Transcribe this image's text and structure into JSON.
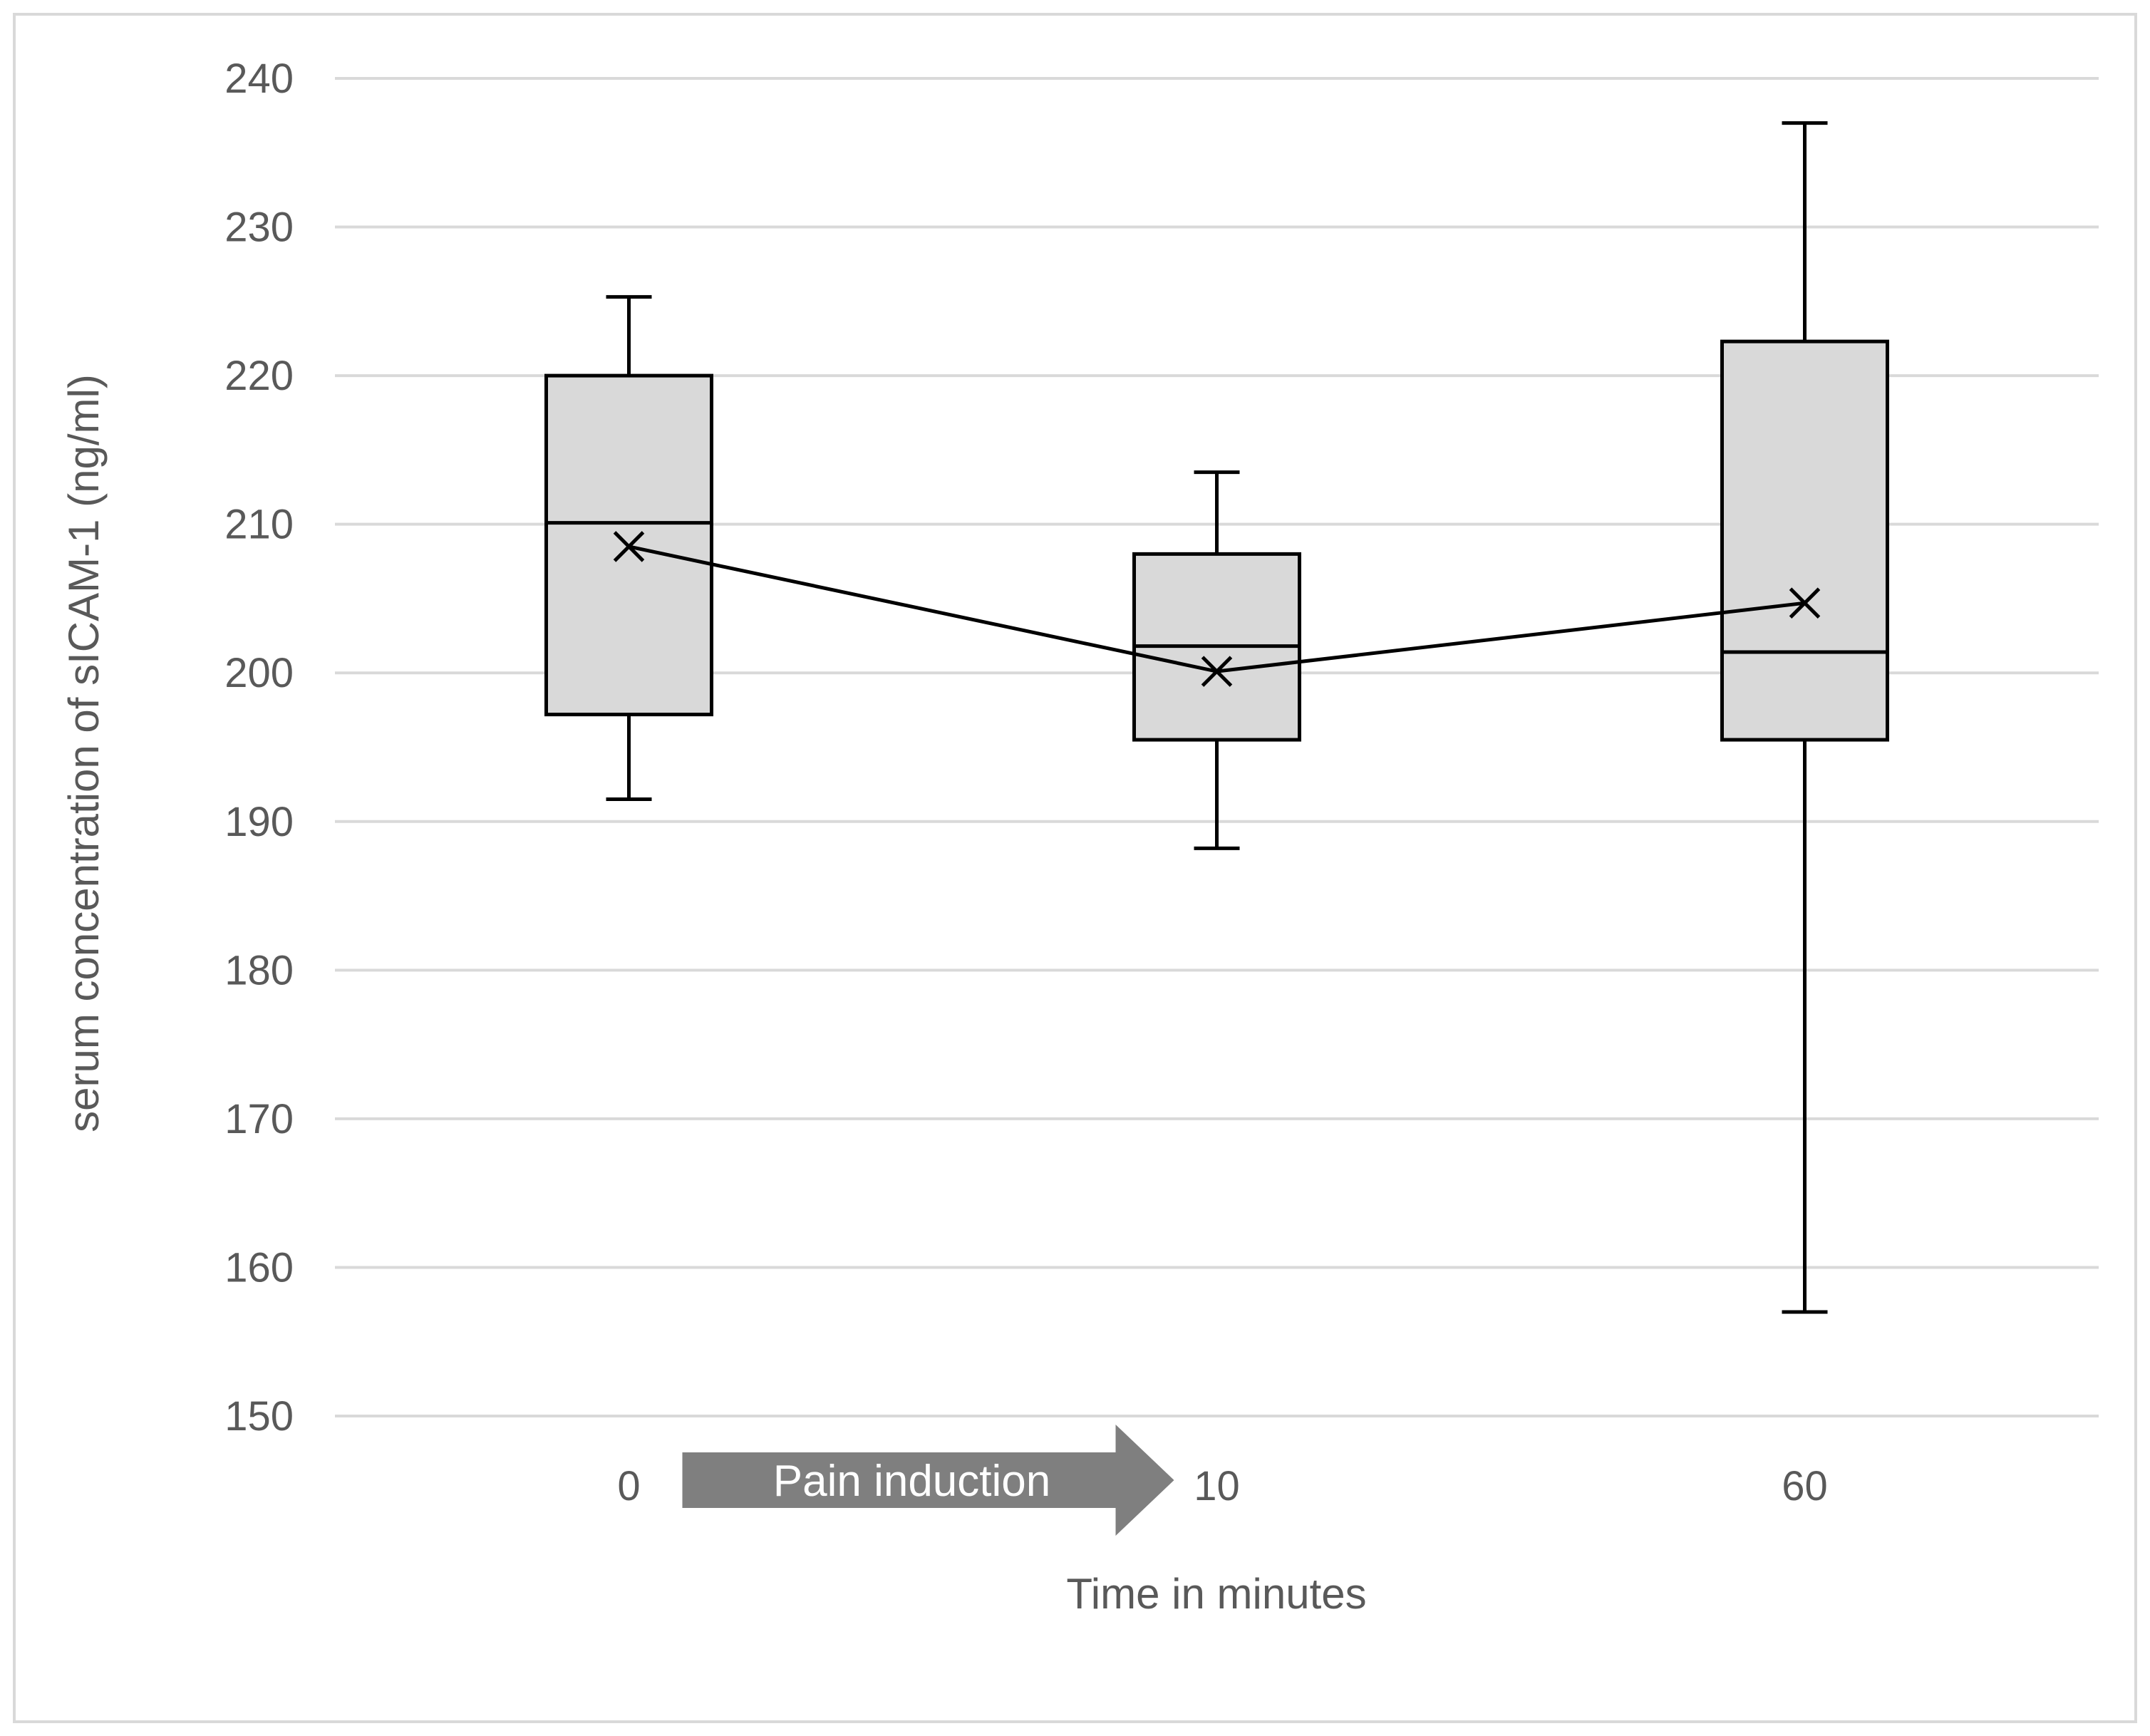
{
  "chart_data": {
    "type": "boxplot",
    "title": "",
    "xlabel": "Time in minutes",
    "ylabel": "serum concentration of sICAM-1 (ng/ml)",
    "ylim": [
      150,
      240
    ],
    "yticks": [
      150,
      160,
      170,
      180,
      190,
      200,
      210,
      220,
      230,
      240
    ],
    "categories": [
      "0",
      "10",
      "60"
    ],
    "grid": true,
    "series": [
      {
        "name": "0",
        "min": 191.5,
        "q1": 197.2,
        "median": 210.1,
        "q3": 220.0,
        "max": 225.3,
        "mean": 208.5
      },
      {
        "name": "10",
        "min": 188.2,
        "q1": 195.5,
        "median": 201.8,
        "q3": 208.0,
        "max": 213.5,
        "mean": 200.1
      },
      {
        "name": "60",
        "min": 157.0,
        "q1": 195.5,
        "median": 201.4,
        "q3": 222.3,
        "max": 237.0,
        "mean": 204.7
      }
    ],
    "annotations": [
      {
        "text": "Pain induction",
        "from_category": "0",
        "to_category": "10"
      }
    ]
  },
  "colors": {
    "box_fill": "#d9d9d9",
    "line": "#000000",
    "grid": "#d9d9d9",
    "text": "#595959",
    "arrow": "#7f7f7f"
  }
}
